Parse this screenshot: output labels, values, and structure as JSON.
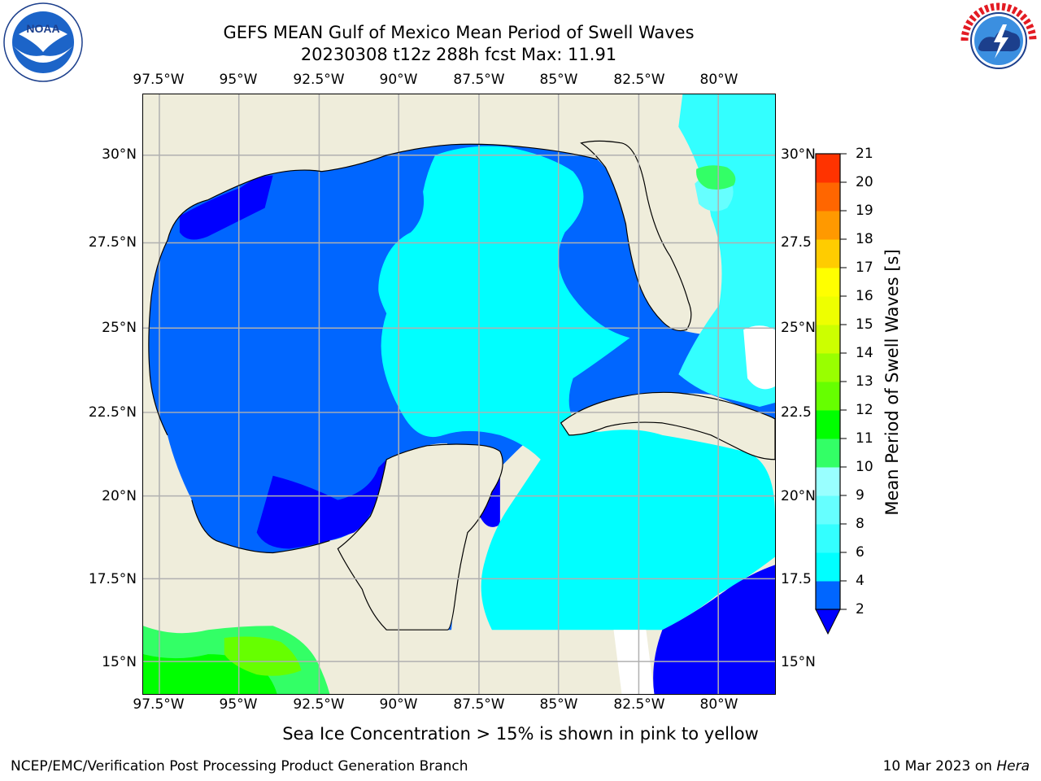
{
  "title_line1": "GEFS MEAN Gulf of Mexico Mean Period of Swell Waves",
  "title_line2": "20230308 t12z 288h fcst   Max: 11.91",
  "lon_labels": [
    "97.5°W",
    "95°W",
    "92.5°W",
    "90°W",
    "87.5°W",
    "85°W",
    "82.5°W",
    "80°W"
  ],
  "lat_labels": [
    "30°N",
    "27.5°N",
    "25°N",
    "22.5°N",
    "20°N",
    "17.5°N",
    "15°N"
  ],
  "lat_labels_right": [
    "30°N",
    "27.5",
    "25°N",
    "22.5",
    "20°N",
    "17.5",
    "15°N"
  ],
  "colorbar": {
    "label": "Mean Period of Swell Waves [s]",
    "ticks": [
      "2",
      "4",
      "6",
      "8",
      "9",
      "10",
      "11",
      "12",
      "13",
      "14",
      "15",
      "16",
      "17",
      "18",
      "19",
      "20",
      "21"
    ],
    "colors": [
      "#0066ff",
      "#00ffff",
      "#33ffff",
      "#66ffff",
      "#99ffff",
      "#33ff66",
      "#00ff00",
      "#66ff00",
      "#99ff00",
      "#ccff00",
      "#eeff00",
      "#ffff00",
      "#ffcc00",
      "#ff9900",
      "#ff6600",
      "#ff3300",
      "#ff0000"
    ],
    "under_color": "#0000ff"
  },
  "note": "Sea Ice Concentration > 15% is shown in pink to yellow",
  "footer_left": "NCEP/EMC/Verification Post Processing Product Generation Branch",
  "footer_right_date": "10 Mar 2023 on ",
  "footer_right_machine": "Hera",
  "logos": {
    "left": "noaa-logo",
    "right": "national-weather-service-logo"
  },
  "colors": {
    "land": "#efeddb",
    "grid": "#b0b0b0"
  }
}
